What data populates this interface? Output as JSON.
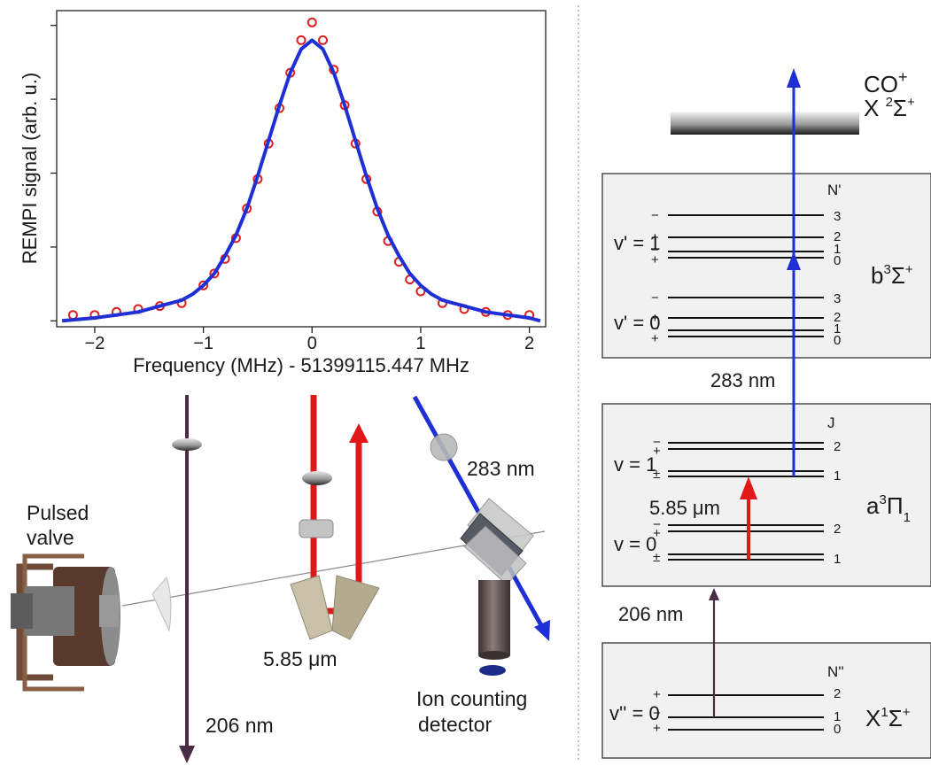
{
  "chart_data": {
    "type": "scatter",
    "xlabel": "Frequency (MHz) - 51399115.447 MHz",
    "ylabel": "REMPI signal (arb. u.)",
    "xlim": [
      -2.35,
      2.15
    ],
    "ylim": [
      -0.02,
      1.05
    ],
    "xticks": [
      -2,
      -1,
      0,
      1,
      2
    ],
    "xtick_labels": [
      "−2",
      "−1",
      "0",
      "1",
      "2"
    ],
    "yticks": [
      0,
      0.25,
      0.5,
      0.75,
      1.0
    ],
    "grid": false,
    "legend": "none",
    "series": [
      {
        "style": "markers",
        "color": "#dd1f1f",
        "marker": "open-circle",
        "x": [
          -2.2,
          -2.0,
          -1.8,
          -1.6,
          -1.4,
          -1.2,
          -1.0,
          -0.9,
          -0.8,
          -0.7,
          -0.6,
          -0.5,
          -0.4,
          -0.3,
          -0.2,
          -0.1,
          0.0,
          0.1,
          0.2,
          0.3,
          0.4,
          0.5,
          0.6,
          0.7,
          0.8,
          0.9,
          1.0,
          1.2,
          1.4,
          1.6,
          1.8,
          2.0
        ],
        "y": [
          0.02,
          0.02,
          0.03,
          0.04,
          0.05,
          0.06,
          0.12,
          0.16,
          0.21,
          0.28,
          0.38,
          0.48,
          0.6,
          0.72,
          0.84,
          0.95,
          1.01,
          0.95,
          0.85,
          0.73,
          0.6,
          0.48,
          0.37,
          0.27,
          0.2,
          0.14,
          0.1,
          0.06,
          0.04,
          0.03,
          0.02,
          0.02
        ]
      },
      {
        "style": "line",
        "color": "#1f2fd6",
        "kind": "fit",
        "x": [
          -2.3,
          -2.0,
          -1.8,
          -1.6,
          -1.4,
          -1.2,
          -1.1,
          -1.0,
          -0.9,
          -0.8,
          -0.7,
          -0.6,
          -0.5,
          -0.4,
          -0.3,
          -0.2,
          -0.1,
          0.0,
          0.1,
          0.2,
          0.3,
          0.4,
          0.5,
          0.6,
          0.7,
          0.8,
          0.9,
          1.0,
          1.1,
          1.2,
          1.4,
          1.6,
          1.8,
          2.0,
          2.1
        ],
        "y": [
          0.0,
          0.01,
          0.02,
          0.03,
          0.05,
          0.07,
          0.09,
          0.12,
          0.16,
          0.22,
          0.29,
          0.38,
          0.49,
          0.61,
          0.73,
          0.84,
          0.92,
          0.95,
          0.92,
          0.84,
          0.73,
          0.61,
          0.49,
          0.38,
          0.29,
          0.22,
          0.16,
          0.12,
          0.09,
          0.07,
          0.05,
          0.03,
          0.02,
          0.01,
          0.0
        ]
      }
    ]
  },
  "setup": {
    "labels": {
      "pulsed_valve_1": "Pulsed",
      "pulsed_valve_2": "valve",
      "beam_206": "206 nm",
      "beam_ir": "5.85 μm",
      "beam_283": "283 nm",
      "detector_1": "Ion counting",
      "detector_2": "detector"
    },
    "colors": {
      "uv_206": "#4a2b46",
      "ir": "#e01818",
      "uv_283": "#1f2fd6"
    }
  },
  "levels": {
    "ion": {
      "name_main": "CO",
      "name_sup": "+",
      "state_main": "X ",
      "state_sup": "2",
      "state_sym": "Σ",
      "state_sup2": "+"
    },
    "b_state": {
      "main": "b",
      "sup": "3",
      "sym": "Σ",
      "sup2": "+",
      "quantum_label": "N'",
      "groups": [
        {
          "label": "v' = 1",
          "numbers": [
            "3",
            "2",
            "1",
            "0"
          ],
          "parities": [
            "−",
            "+",
            "−",
            "+"
          ]
        },
        {
          "label": "v' = 0",
          "numbers": [
            "3",
            "2",
            "1",
            "0"
          ],
          "parities": [
            "−",
            "+",
            "−",
            "+"
          ]
        }
      ]
    },
    "a_state": {
      "main": "a",
      "sup": "3",
      "sym": "Π",
      "sub": "1",
      "quantum_label": "J",
      "groups": [
        {
          "label": "v = 1",
          "numbers": [
            "2",
            "1"
          ],
          "parities": [
            "−",
            "+",
            "±"
          ]
        },
        {
          "label": "v = 0",
          "numbers": [
            "2",
            "1"
          ],
          "parities": [
            "−",
            "+",
            "±"
          ]
        }
      ]
    },
    "x_state": {
      "main": "X",
      "sup": "1",
      "sym": "Σ",
      "sup2": "+",
      "quantum_label": "N''",
      "groups": [
        {
          "label": "v'' = 0",
          "numbers": [
            "2",
            "1",
            "0"
          ],
          "parities": [
            "+",
            "−",
            "+"
          ]
        }
      ]
    },
    "transitions": {
      "t283": "283 nm",
      "t585": "5.85 μm",
      "t206": "206 nm"
    }
  }
}
